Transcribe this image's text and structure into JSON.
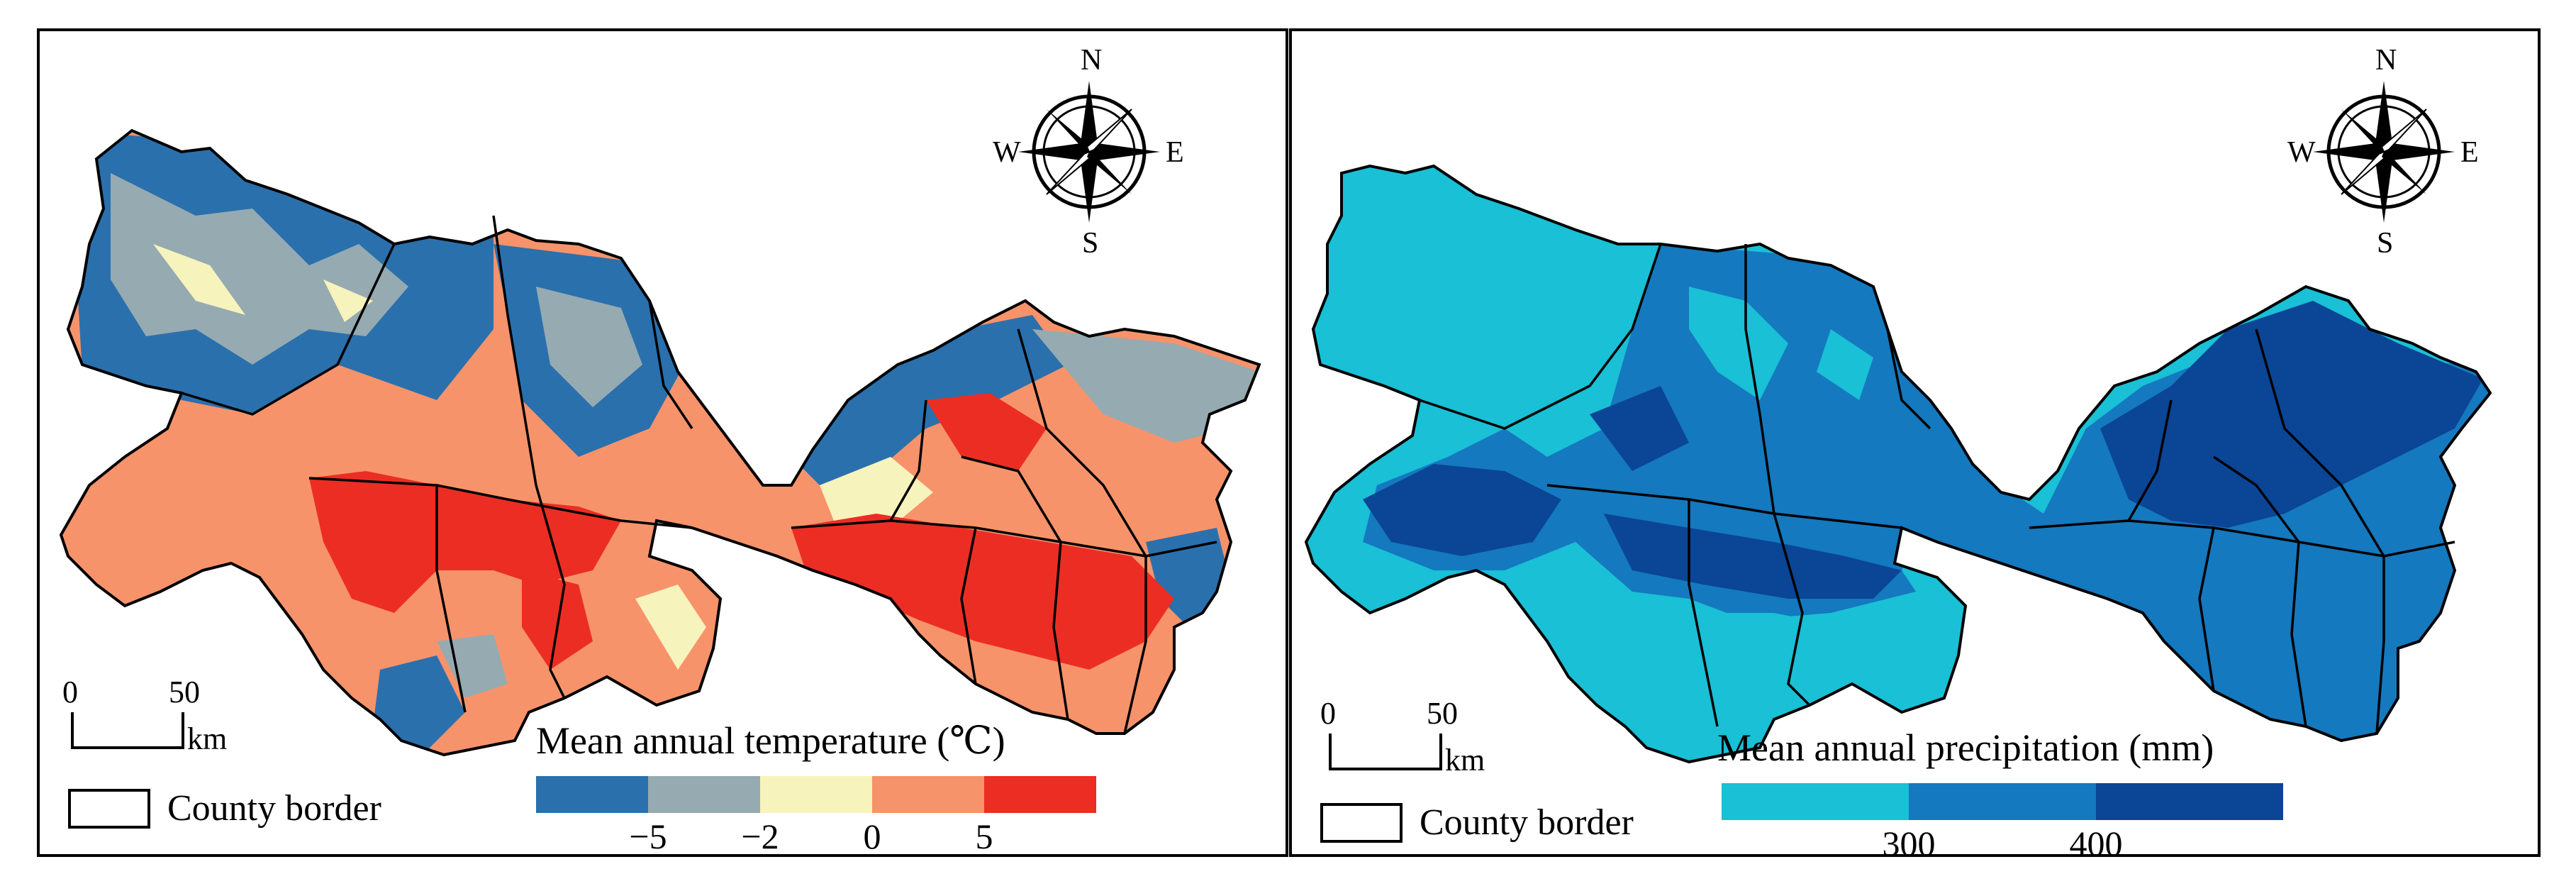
{
  "panels": [
    {
      "id": "temperature",
      "legend_title": "Mean annual temperature (℃)",
      "bin_colors": [
        "#2a70ad",
        "#96aab1",
        "#f7f3bd",
        "#f7936a",
        "#ec2d24"
      ],
      "ticks": [
        "−5",
        "−2",
        "0",
        "5"
      ],
      "county_label": "County border",
      "scale": {
        "zero": "0",
        "fifty": "50",
        "unit": "km"
      },
      "compass": {
        "n": "N",
        "s": "S",
        "e": "E",
        "w": "W"
      }
    },
    {
      "id": "precipitation",
      "legend_title": "Mean annual precipitation (mm)",
      "bin_colors": [
        "#19c0d6",
        "#1479bf",
        "#0b4596"
      ],
      "ticks": [
        "300",
        "400"
      ],
      "county_label": "County border",
      "scale": {
        "zero": "0",
        "fifty": "50",
        "unit": "km"
      },
      "compass": {
        "n": "N",
        "s": "S",
        "e": "E",
        "w": "W"
      }
    }
  ],
  "colors": {
    "border": "#000000",
    "background": "#ffffff"
  }
}
